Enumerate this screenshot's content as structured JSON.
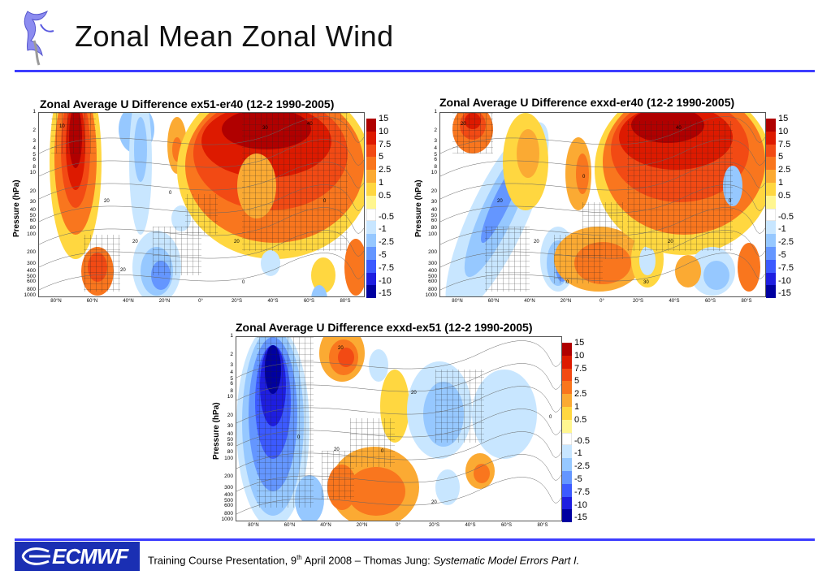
{
  "slide": {
    "title": "Zonal Mean Zonal Wind",
    "footer": {
      "logo_text": "ECMWF",
      "prefix": "Training Course Presentation, 9",
      "sup": "th",
      "middle": " April 2008 – Thomas Jung: ",
      "italic": "Systematic Model Errors Part I."
    }
  },
  "legend": {
    "labels": [
      "15",
      "10",
      "7.5",
      "5",
      "2.5",
      "1",
      "0.5",
      "-0.5",
      "-1",
      "-2.5",
      "-5",
      "-7.5",
      "-10",
      "-15"
    ],
    "colors": [
      "#b00000",
      "#dd1a00",
      "#f24a14",
      "#f9761e",
      "#fbaa33",
      "#ffd740",
      "#fff690",
      "#ffffff",
      "#c8e6ff",
      "#96c8ff",
      "#6496ff",
      "#3c5aff",
      "#1e1ee0",
      "#0000a0"
    ]
  },
  "chart_data": [
    {
      "type": "heatmap",
      "title": "Zonal Average U Difference ex51-er40 (12-2 1990-2005)",
      "ylabel": "Pressure (hPa)",
      "y_ticks": [
        "1",
        "2",
        "3",
        "4",
        "5",
        "6",
        "8",
        "10",
        "20",
        "30",
        "40",
        "50",
        "60",
        "80",
        "100",
        "200",
        "300",
        "400",
        "500",
        "600",
        "800",
        "1000"
      ],
      "x_ticks": [
        "80°N",
        "60°N",
        "40°N",
        "20°N",
        "0°",
        "20°S",
        "40°S",
        "60°S",
        "80°S"
      ],
      "y_scale": "log",
      "ylim": [
        1000,
        1
      ],
      "contour_labels": [
        "10",
        "20",
        "20",
        "20",
        "0",
        "0",
        "30",
        "40",
        "20",
        "0"
      ]
    },
    {
      "type": "heatmap",
      "title": "Zonal Average U Difference exxd-er40 (12-2 1990-2005)",
      "ylabel": "Pressure (hPa)",
      "y_ticks": [
        "1",
        "2",
        "3",
        "4",
        "5",
        "6",
        "8",
        "10",
        "20",
        "30",
        "40",
        "50",
        "60",
        "80",
        "100",
        "200",
        "300",
        "400",
        "500",
        "600",
        "800",
        "1000"
      ],
      "x_ticks": [
        "80°N",
        "60°N",
        "40°N",
        "20°N",
        "0°",
        "20°S",
        "40°S",
        "60°S",
        "80°S"
      ],
      "y_scale": "log",
      "ylim": [
        1000,
        1
      ],
      "contour_labels": [
        "20",
        "20",
        "20",
        "0",
        "0",
        "30",
        "40",
        "20",
        "0"
      ]
    },
    {
      "type": "heatmap",
      "title": "Zonal Average U Difference exxd-ex51 (12-2 1990-2005)",
      "ylabel": "Pressure (hPa)",
      "y_ticks": [
        "1",
        "2",
        "3",
        "4",
        "5",
        "6",
        "8",
        "10",
        "20",
        "30",
        "40",
        "50",
        "60",
        "80",
        "100",
        "200",
        "300",
        "400",
        "500",
        "600",
        "800",
        "1000"
      ],
      "x_ticks": [
        "80°N",
        "60°N",
        "40°N",
        "20°N",
        "0°",
        "20°S",
        "40°S",
        "60°S",
        "80°S"
      ],
      "y_scale": "log",
      "ylim": [
        1000,
        1
      ],
      "contour_labels": [
        "20",
        "20",
        "20",
        "0",
        "0",
        "20",
        "0"
      ]
    }
  ]
}
